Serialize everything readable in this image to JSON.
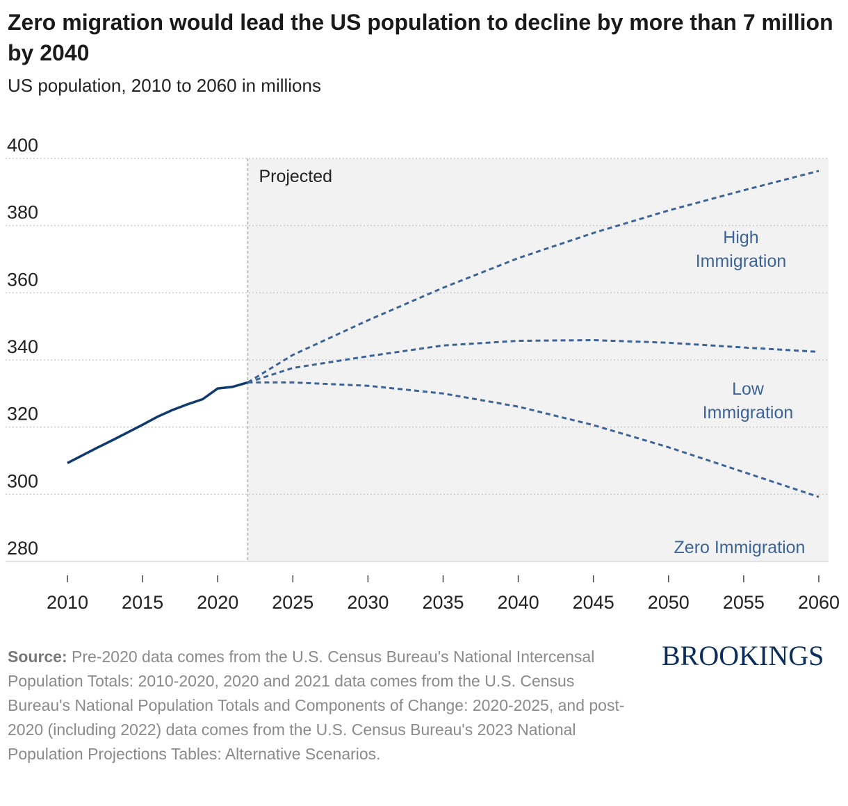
{
  "header": {
    "title": "Zero migration would lead the US population to decline by more than 7 million by 2040",
    "subtitle": "US population, 2010 to 2060 in millions"
  },
  "footer": {
    "source_label": "Source:",
    "source_text": "Pre-2020 data comes from the U.S. Census Bureau's National Intercensal Population Totals: 2010-2020, 2020 and 2021 data comes from the U.S. Census Bureau's National Population Totals and Components of Change: 2020-2025, and post-2020 (including 2022) data comes from the U.S. Census Bureau's 2023 National Population Projections Tables: Alternative Scenarios.",
    "logo": "BROOKINGS"
  },
  "colors": {
    "historical": "#0e3a6e",
    "projection": "#3d6496",
    "label": "#3d6496",
    "projected_shade": "#f2f2f2",
    "grid": "#cccccc"
  },
  "chart_data": {
    "type": "line",
    "title": "Zero migration would lead the US population to decline by more than 7 million by 2040",
    "subtitle": "US population, 2010 to 2060 in millions",
    "xlim": [
      2010,
      2060
    ],
    "ylim": [
      280,
      400
    ],
    "x_ticks": [
      2010,
      2015,
      2020,
      2025,
      2030,
      2035,
      2040,
      2045,
      2050,
      2055,
      2060
    ],
    "y_ticks": [
      280,
      300,
      320,
      340,
      360,
      380,
      400
    ],
    "grid": "horizontal dotted",
    "projected_region": {
      "start": 2022,
      "end": 2060,
      "label": "Projected"
    },
    "series": [
      {
        "style": "solid",
        "x": [
          2010,
          2011,
          2012,
          2013,
          2014,
          2015,
          2016,
          2017,
          2018,
          2019,
          2020,
          2021,
          2022
        ],
        "y": [
          309.3,
          311.6,
          313.9,
          316.1,
          318.4,
          320.7,
          323.1,
          325.1,
          326.8,
          328.3,
          331.5,
          332.0,
          333.3
        ]
      },
      {
        "label": "High Immigration",
        "style": "dashed",
        "x": [
          2022,
          2025,
          2030,
          2035,
          2040,
          2045,
          2050,
          2055,
          2060
        ],
        "y": [
          333.3,
          341.5,
          351.8,
          361.5,
          370.3,
          377.8,
          384.5,
          390.5,
          396.3
        ]
      },
      {
        "label": "Low Immigration",
        "style": "dashed",
        "x": [
          2022,
          2025,
          2030,
          2035,
          2040,
          2045,
          2050,
          2055,
          2060
        ],
        "y": [
          333.3,
          337.6,
          341.1,
          344.3,
          345.7,
          345.9,
          345.1,
          343.7,
          342.4
        ]
      },
      {
        "label": "Zero Immigration",
        "style": "dashed",
        "x": [
          2022,
          2025,
          2030,
          2035,
          2040,
          2045,
          2050,
          2055,
          2060
        ],
        "y": [
          333.3,
          333.3,
          332.3,
          330.0,
          326.1,
          320.6,
          314.0,
          306.6,
          299.2
        ]
      }
    ]
  }
}
